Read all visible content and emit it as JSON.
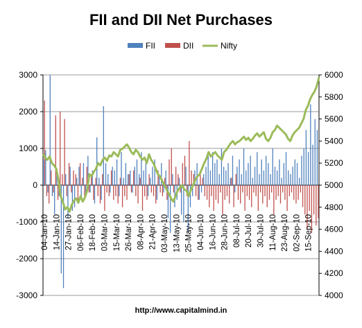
{
  "chart_data": {
    "type": "bar",
    "title": "FII and DII Net Purchases",
    "footer": "http://www.capitalmind.in",
    "left_axis": {
      "min": -3000,
      "max": 3000,
      "ticks": [
        3000,
        2000,
        1000,
        0,
        -1000,
        -2000,
        -3000
      ]
    },
    "right_axis": {
      "min": 4000,
      "max": 6000,
      "ticks": [
        6000,
        5800,
        5600,
        5400,
        5200,
        5000,
        4800,
        4600,
        4400,
        4200,
        4000
      ]
    },
    "x_tick_labels": [
      "04-Jan-10",
      "14-Jan-10",
      "27-Jan-10",
      "06-Feb-10",
      "18-Feb-10",
      "03-Mar-10",
      "15-Mar-10",
      "26-Mar-10",
      "08-Apr-10",
      "21-Apr-10",
      "03-May-10",
      "13-May-10",
      "25-May-10",
      "04-Jun-10",
      "16-Jun-10",
      "28-Jun-10",
      "08-Jul-10",
      "20-Jul-10",
      "30-Jul-10",
      "11-Aug-10",
      "23-Aug-10",
      "02-Sep-10",
      "15-Sep-10"
    ],
    "grid": true,
    "legend_position": "top",
    "series": [
      {
        "name": "FII",
        "type": "bar",
        "axis": "left",
        "color": "#4f81bd",
        "values": [
          700,
          950,
          -200,
          3000,
          -300,
          -800,
          400,
          -300,
          -2400,
          -2800,
          300,
          -900,
          500,
          -700,
          -600,
          200,
          500,
          -400,
          600,
          -300,
          800,
          -200,
          400,
          -500,
          1300,
          200,
          -400,
          2150,
          600,
          300,
          -200,
          500,
          400,
          700,
          -300,
          900,
          200,
          600,
          300,
          400,
          -200,
          500,
          700,
          300,
          900,
          400,
          600,
          -300,
          200,
          500,
          700,
          -400,
          300,
          600,
          -200,
          400,
          -900,
          -1300,
          300,
          -600,
          -400,
          200,
          -800,
          -1000,
          500,
          -1300,
          -600,
          -300,
          400,
          600,
          -400,
          -200,
          300,
          500,
          800,
          400,
          900,
          600,
          700,
          300,
          1000,
          500,
          400,
          600,
          200,
          800,
          -200,
          500,
          700,
          300,
          1000,
          400,
          600,
          800,
          200,
          500,
          900,
          300,
          700,
          400,
          800,
          600,
          300,
          1000,
          500,
          400,
          700,
          200,
          600,
          900,
          400,
          300,
          500,
          700,
          600,
          200,
          800,
          1000,
          1500,
          900,
          2200,
          1100,
          1800,
          1500
        ]
      },
      {
        "name": "DII",
        "type": "bar",
        "axis": "left",
        "color": "#c0504d",
        "values": [
          2300,
          -300,
          -500,
          400,
          -200,
          1900,
          -400,
          2000,
          300,
          1800,
          -300,
          600,
          -200,
          400,
          300,
          -400,
          600,
          200,
          -300,
          500,
          -200,
          300,
          -400,
          200,
          -300,
          -500,
          300,
          -700,
          -200,
          -300,
          400,
          -400,
          -300,
          -500,
          200,
          -600,
          -300,
          -400,
          300,
          -200,
          400,
          -300,
          -500,
          200,
          -700,
          -300,
          -400,
          300,
          -200,
          -300,
          -500,
          400,
          -200,
          -300,
          200,
          -400,
          700,
          1000,
          -200,
          500,
          300,
          -200,
          600,
          800,
          -300,
          1200,
          400,
          300,
          -300,
          -400,
          300,
          200,
          -300,
          -400,
          -600,
          -300,
          -700,
          -400,
          -500,
          -200,
          -800,
          -400,
          -300,
          -500,
          200,
          -600,
          300,
          -400,
          -500,
          -200,
          -700,
          -300,
          -400,
          -600,
          -200,
          -300,
          -700,
          -200,
          -500,
          -300,
          -600,
          -400,
          -200,
          -800,
          -400,
          -300,
          -500,
          -200,
          -400,
          -700,
          -300,
          -200,
          -400,
          -500,
          -400,
          -200,
          -600,
          -800,
          -1200,
          -700,
          -1300,
          -800,
          -1100,
          -900
        ]
      },
      {
        "name": "Nifty",
        "type": "line",
        "axis": "right",
        "color": "#9bbb59",
        "values": [
          5280,
          5250,
          5230,
          5260,
          5200,
          5180,
          5150,
          5050,
          4900,
          4850,
          4780,
          4800,
          4760,
          4820,
          4860,
          4880,
          4840,
          4900,
          4850,
          4890,
          4950,
          5100,
          5080,
          5120,
          5150,
          5200,
          5180,
          5230,
          5250,
          5220,
          5270,
          5260,
          5300,
          5280,
          5260,
          5320,
          5330,
          5350,
          5370,
          5340,
          5300,
          5280,
          5320,
          5300,
          5260,
          5230,
          5250,
          5200,
          5280,
          5230,
          5200,
          5150,
          5100,
          5080,
          5040,
          5000,
          4960,
          4920,
          4880,
          4850,
          4900,
          4950,
          4980,
          5000,
          4960,
          4950,
          4900,
          4960,
          5000,
          5050,
          5080,
          5100,
          5150,
          5200,
          5240,
          5300,
          5260,
          5280,
          5300,
          5270,
          5250,
          5230,
          5300,
          5320,
          5350,
          5380,
          5400,
          5370,
          5390,
          5400,
          5420,
          5440,
          5410,
          5430,
          5400,
          5420,
          5450,
          5470,
          5440,
          5460,
          5480,
          5420,
          5400,
          5430,
          5480,
          5500,
          5540,
          5520,
          5500,
          5480,
          5460,
          5420,
          5400,
          5450,
          5480,
          5500,
          5520,
          5560,
          5600,
          5680,
          5720,
          5780,
          5820,
          5850,
          5900,
          5980
        ]
      }
    ]
  }
}
